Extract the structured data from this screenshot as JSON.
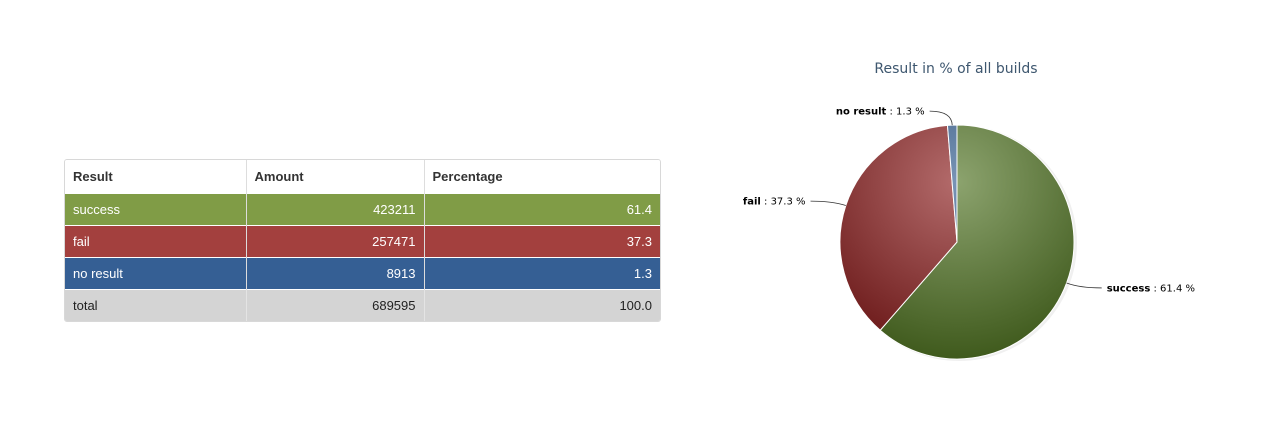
{
  "table": {
    "headers": [
      "Result",
      "Amount",
      "Percentage"
    ],
    "rows": [
      {
        "result": "success",
        "amount": "423211",
        "percentage": "61.4"
      },
      {
        "result": "fail",
        "amount": "257471",
        "percentage": "37.3"
      },
      {
        "result": "no result",
        "amount": "8913",
        "percentage": "1.3"
      },
      {
        "result": "total",
        "amount": "689595",
        "percentage": "100.0"
      }
    ]
  },
  "chart_data": {
    "type": "pie",
    "title": "Result in % of all builds",
    "slices": [
      {
        "name": "success",
        "value": 61.4,
        "label": "success : 61.4 %",
        "color": "#4e7220"
      },
      {
        "name": "fail",
        "value": 37.3,
        "label": "fail : 37.3 %",
        "color": "#8a1c1c"
      },
      {
        "name": "no result",
        "value": 1.3,
        "label": "no result : 1.3 %",
        "color": "#2f5a8e"
      }
    ],
    "legend": "none"
  },
  "colors": {
    "success_row": "#809c46",
    "fail_row": "#a3403e",
    "noresult_row": "#355f94",
    "total_row": "#d4d4d4",
    "title": "#3e576f"
  }
}
